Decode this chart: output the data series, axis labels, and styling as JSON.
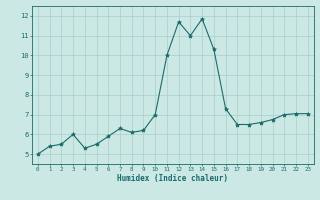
{
  "xlabel": "Humidex (Indice chaleur)",
  "ylabel": "",
  "background_color": "#cce8e4",
  "grid_color": "#aacfcc",
  "line_color": "#1a6b6b",
  "xlim": [
    -0.5,
    23.5
  ],
  "ylim": [
    4.5,
    12.5
  ],
  "xticks": [
    0,
    1,
    2,
    3,
    4,
    5,
    6,
    7,
    8,
    9,
    10,
    11,
    12,
    13,
    14,
    15,
    16,
    17,
    18,
    19,
    20,
    21,
    22,
    23
  ],
  "yticks": [
    5,
    6,
    7,
    8,
    9,
    10,
    11,
    12
  ],
  "series": [
    [
      0,
      5.0
    ],
    [
      1,
      5.4
    ],
    [
      2,
      5.5
    ],
    [
      3,
      6.0
    ],
    [
      4,
      5.3
    ],
    [
      5,
      5.5
    ],
    [
      6,
      5.9
    ],
    [
      7,
      6.3
    ],
    [
      8,
      6.1
    ],
    [
      9,
      6.2
    ],
    [
      10,
      7.0
    ],
    [
      11,
      10.0
    ],
    [
      12,
      11.7
    ],
    [
      13,
      11.0
    ],
    [
      14,
      11.85
    ],
    [
      15,
      10.3
    ],
    [
      16,
      7.3
    ],
    [
      17,
      6.5
    ],
    [
      18,
      6.5
    ],
    [
      19,
      6.6
    ],
    [
      20,
      6.75
    ],
    [
      21,
      7.0
    ],
    [
      22,
      7.05
    ],
    [
      23,
      7.05
    ]
  ]
}
